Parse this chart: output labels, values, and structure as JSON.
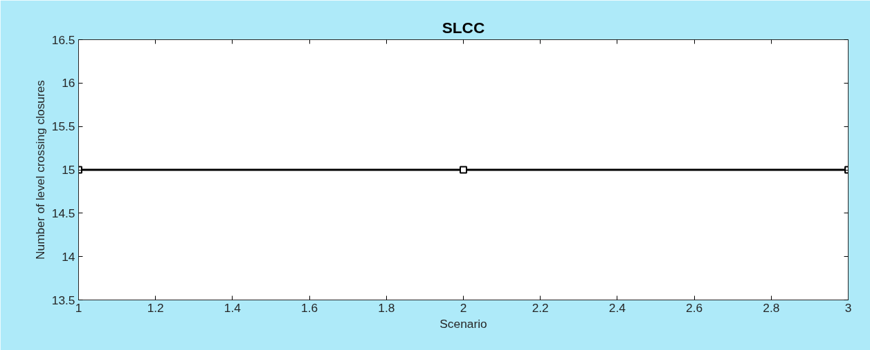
{
  "chart_data": {
    "type": "line",
    "title": "SLCC",
    "xlabel": "Scenario",
    "ylabel": "Number of level crossing closures",
    "x": [
      1,
      2,
      3
    ],
    "series": [
      {
        "color": "#000000",
        "values": [
          15,
          15,
          15
        ]
      }
    ],
    "xlim": [
      1,
      3
    ],
    "xticks": [
      1,
      1.2,
      1.4,
      1.6,
      1.8,
      2,
      2.2,
      2.4,
      2.6,
      2.8,
      3
    ],
    "ylim": [
      13.5,
      16.5
    ],
    "yticks": [
      13.5,
      14,
      14.5,
      15,
      15.5,
      16,
      16.5
    ],
    "grid": false,
    "marker": "square",
    "line_style": "solid"
  }
}
